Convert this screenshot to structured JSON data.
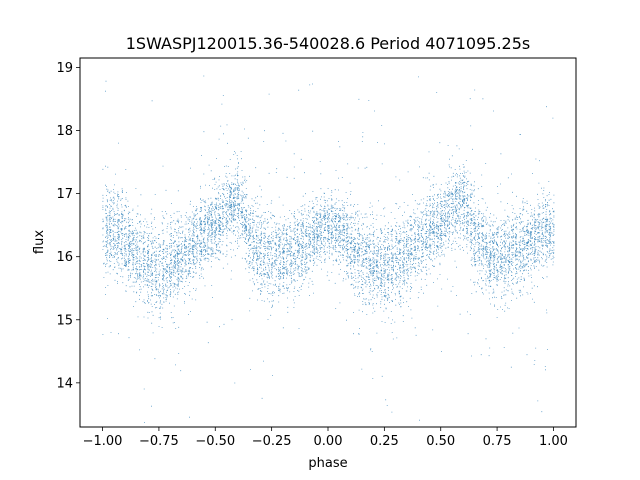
{
  "chart_data": {
    "type": "scatter",
    "title": "1SWASPJ120015.36-540028.6 Period 4071095.25s",
    "xlabel": "phase",
    "ylabel": "flux",
    "xlim": [
      -1.1,
      1.1
    ],
    "ylim": [
      13.3,
      19.15
    ],
    "xticks": [
      -1.0,
      -0.75,
      -0.5,
      -0.25,
      0.0,
      0.25,
      0.5,
      0.75,
      1.0
    ],
    "xtick_labels": [
      "−1.00",
      "−0.75",
      "−0.50",
      "−0.25",
      "0.00",
      "0.25",
      "0.50",
      "0.75",
      "1.00"
    ],
    "yticks": [
      14,
      15,
      16,
      17,
      18,
      19
    ],
    "ytick_labels": [
      "14",
      "15",
      "16",
      "17",
      "18",
      "19"
    ],
    "grid": false,
    "marker_color": "#1f77b4",
    "series": [
      {
        "folded_light_curve_profile": {
          "phase": [
            -1.0,
            -0.95,
            -0.9,
            -0.85,
            -0.8,
            -0.75,
            -0.7,
            -0.65,
            -0.6,
            -0.55,
            -0.5,
            -0.45,
            -0.4,
            -0.35,
            -0.3,
            -0.25,
            -0.2,
            -0.15,
            -0.1,
            -0.05,
            0.0,
            0.05,
            0.1,
            0.15,
            0.2,
            0.25,
            0.3,
            0.35,
            0.4,
            0.45,
            0.5,
            0.55,
            0.6,
            0.65,
            0.7,
            0.75,
            0.8,
            0.85,
            0.9,
            0.95,
            1.0
          ],
          "median_flux": [
            16.4,
            16.45,
            16.2,
            16.0,
            15.9,
            15.8,
            15.9,
            16.0,
            16.2,
            16.4,
            16.5,
            16.8,
            16.9,
            16.3,
            16.1,
            16.0,
            16.0,
            16.1,
            16.2,
            16.4,
            16.5,
            16.45,
            16.2,
            16.0,
            15.9,
            15.8,
            15.9,
            16.0,
            16.2,
            16.4,
            16.5,
            16.8,
            16.9,
            16.3,
            16.1,
            16.0,
            16.0,
            16.1,
            16.2,
            16.4,
            16.4
          ],
          "core_spread": [
            0.45,
            0.45,
            0.45,
            0.45,
            0.45,
            0.5,
            0.45,
            0.45,
            0.45,
            0.4,
            0.35,
            0.4,
            0.4,
            0.45,
            0.45,
            0.45,
            0.45,
            0.45,
            0.4,
            0.35,
            0.35,
            0.4,
            0.45,
            0.45,
            0.45,
            0.5,
            0.45,
            0.45,
            0.45,
            0.4,
            0.35,
            0.4,
            0.4,
            0.45,
            0.45,
            0.45,
            0.45,
            0.45,
            0.4,
            0.35,
            0.4
          ],
          "approx_point_count": 18000
        }
      }
    ]
  }
}
